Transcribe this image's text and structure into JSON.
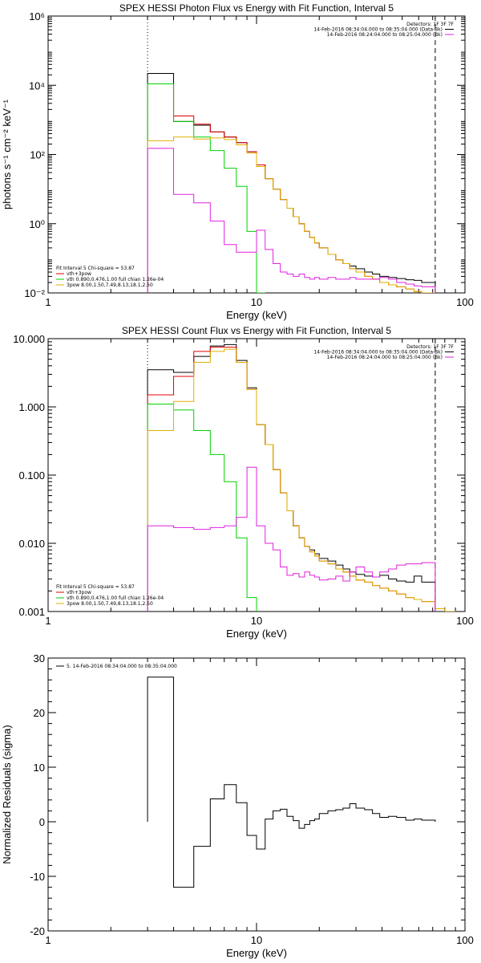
{
  "chart_data": [
    {
      "type": "line",
      "title": "SPEX HESSI Photon Flux vs Energy with Fit Function, Interval 5",
      "xlabel": "Energy (keV)",
      "ylabel": "photons s⁻¹ cm⁻² keV⁻¹",
      "xscale": "log",
      "yscale": "log",
      "xlim": [
        1,
        100
      ],
      "ylim": [
        0.01,
        1000000
      ],
      "xticks": [
        {
          "v": 1,
          "label": "1"
        },
        {
          "v": 10,
          "label": "10"
        },
        {
          "v": 100,
          "label": "100"
        }
      ],
      "yticks": [
        {
          "v": 0.01,
          "label": "10⁻²"
        },
        {
          "v": 1,
          "label": "10⁰"
        },
        {
          "v": 100,
          "label": "10²"
        },
        {
          "v": 10000,
          "label": "10⁴"
        },
        {
          "v": 1000000,
          "label": "10⁶"
        }
      ],
      "vlines": [
        {
          "x": 3,
          "style": "dotted"
        },
        {
          "x": 72,
          "style": "dashed"
        }
      ],
      "legend_top": {
        "position": "top-right",
        "items": [
          {
            "text": "Detectors: 1F 3F 7F",
            "color": ""
          },
          {
            "text": "14-Feb-2016 08:34:04.000 to 08:35:04.000 (Data-Bk)",
            "color": "#000000"
          },
          {
            "text": "14-Feb-2016 08:24:04.000 to 08:25:04.000 (Bk)",
            "color": "#e020e0"
          }
        ]
      },
      "legend_bottom": {
        "position": "bottom-left",
        "header": "Fit Interval 5   Chi-square = 53.87",
        "items": [
          {
            "text": "vth+3pow",
            "color": "#e00000"
          },
          {
            "text": "vth 0.890,0.476,1.00  full chian 1.26e-04",
            "color": "#00d000"
          },
          {
            "text": "3pow 8.00,1.50,7.49,8.13,18.1,2.50",
            "color": "#e0b000"
          }
        ]
      },
      "edges": [
        3,
        4,
        5,
        6,
        7,
        8,
        9,
        10,
        11,
        12,
        13,
        14,
        15,
        16,
        17,
        18,
        19,
        20,
        22,
        24,
        26,
        28,
        30,
        33,
        36,
        39,
        43,
        47,
        52,
        57,
        62,
        72
      ],
      "series": [
        {
          "name": "Data-Bk",
          "color": "#000000",
          "values": [
            22000,
            900,
            700,
            450,
            320,
            220,
            120,
            50,
            20,
            10,
            5,
            2.8,
            1.6,
            1,
            0.6,
            0.4,
            0.28,
            0.2,
            0.13,
            0.09,
            0.07,
            0.06,
            0.05,
            0.04,
            0.035,
            0.03,
            0.028,
            0.026,
            0.024,
            0.023,
            0.02
          ]
        },
        {
          "name": "vth+3pow",
          "color": "#e00000",
          "values": [
            11000,
            1300,
            750,
            450,
            320,
            220,
            120,
            50,
            20,
            10,
            5,
            2.8,
            1.6,
            1,
            0.6,
            0.4,
            0.28,
            0.2,
            0.13,
            0.09,
            0.07,
            0.05,
            0.04,
            0.03,
            0.025,
            0.02,
            0.017,
            0.015,
            0.013,
            0.011,
            0.01
          ]
        },
        {
          "name": "vth",
          "color": "#00d000",
          "values": [
            11000,
            900,
            320,
            130,
            40,
            12,
            0.6,
            0.01
          ]
        },
        {
          "name": "3pow",
          "color": "#e0b000",
          "values": [
            250,
            320,
            280,
            300,
            270,
            190,
            110,
            45,
            20,
            10,
            5,
            2.8,
            1.6,
            1,
            0.6,
            0.4,
            0.28,
            0.2,
            0.13,
            0.09,
            0.07,
            0.05,
            0.04,
            0.03,
            0.025,
            0.02,
            0.017,
            0.015,
            0.013,
            0.011,
            0.01
          ]
        },
        {
          "name": "Bk",
          "color": "#e020e0",
          "values": [
            150,
            7,
            4,
            1.2,
            0.25,
            0.15,
            0.15,
            0.65,
            0.18,
            0.07,
            0.04,
            0.035,
            0.03,
            0.035,
            0.028,
            0.025,
            0.028,
            0.025,
            0.028,
            0.025,
            0.025,
            0.028,
            0.025,
            0.025,
            0.025,
            0.028,
            0.025,
            0.02,
            0.018,
            0.016,
            0.015
          ]
        }
      ]
    },
    {
      "type": "line",
      "title": "SPEX HESSI Count Flux vs Energy with Fit Function, Interval 5",
      "xlabel": "Energy (keV)",
      "ylabel": "",
      "xscale": "log",
      "yscale": "log",
      "xlim": [
        1,
        100
      ],
      "ylim": [
        0.001,
        10
      ],
      "xticks": [
        {
          "v": 1,
          "label": "1"
        },
        {
          "v": 10,
          "label": "10"
        },
        {
          "v": 100,
          "label": "100"
        }
      ],
      "yticks": [
        {
          "v": 0.001,
          "label": "0.001"
        },
        {
          "v": 0.01,
          "label": "0.010"
        },
        {
          "v": 0.1,
          "label": "0.100"
        },
        {
          "v": 1,
          "label": "1.000"
        },
        {
          "v": 10,
          "label": "10.000"
        }
      ],
      "vlines": [
        {
          "x": 3,
          "style": "dotted"
        },
        {
          "x": 72,
          "style": "dashed"
        }
      ],
      "legend_top": {
        "position": "top-right",
        "items": [
          {
            "text": "Detectors: 1F 3F 7F",
            "color": ""
          },
          {
            "text": "14-Feb-2016 08:34:04.000 to 08:35:04.000 (Data-Bk)",
            "color": "#000000"
          },
          {
            "text": "14-Feb-2016 08:24:04.000 to 08:25:04.000 (Bk)",
            "color": "#e020e0"
          }
        ]
      },
      "legend_bottom": {
        "position": "bottom-left",
        "header": "Fit Interval 5   Chi-square = 53.87",
        "items": [
          {
            "text": "vth+3pow",
            "color": "#e00000"
          },
          {
            "text": "vth 0.890,0.476,1.00  full chian 1.26e-04",
            "color": "#00d000"
          },
          {
            "text": "3pow 8.00,1.50,7.49,8.13,18.1,2.50",
            "color": "#e0b000"
          }
        ]
      },
      "edges": [
        3,
        4,
        5,
        6,
        7,
        8,
        9,
        10,
        11,
        12,
        13,
        14,
        15,
        16,
        17,
        18,
        19,
        20,
        22,
        24,
        26,
        28,
        30,
        33,
        36,
        39,
        43,
        47,
        52,
        57,
        62,
        72,
        80,
        90
      ],
      "series": [
        {
          "name": "Data-Bk",
          "color": "#000000",
          "values": [
            3.5,
            3.2,
            5.5,
            7.8,
            8.2,
            4.8,
            1.9,
            0.55,
            0.28,
            0.12,
            0.055,
            0.03,
            0.018,
            0.012,
            0.009,
            0.008,
            0.007,
            0.006,
            0.0055,
            0.0048,
            0.0042,
            0.0038,
            0.0035,
            0.0033,
            0.0032,
            0.0034,
            0.003,
            0.0028,
            0.0027,
            0.0033,
            0.0027
          ]
        },
        {
          "name": "vth+3pow",
          "color": "#e00000",
          "values": [
            1.5,
            2.8,
            6.5,
            7.5,
            7.5,
            4.5,
            1.8,
            0.55,
            0.28,
            0.12,
            0.055,
            0.03,
            0.018,
            0.012,
            0.009,
            0.0075,
            0.0065,
            0.0055,
            0.005,
            0.0042,
            0.0038,
            0.0033,
            0.0029,
            0.0027,
            0.0024,
            0.0022,
            0.002,
            0.0018,
            0.0016,
            0.0015,
            0.0014
          ]
        },
        {
          "name": "vth",
          "color": "#00d000",
          "values": [
            1.1,
            0.9,
            0.45,
            0.2,
            0.08,
            0.012,
            0.0016
          ]
        },
        {
          "name": "3pow",
          "color": "#e0b000",
          "values": [
            0.45,
            1.2,
            4.5,
            6.5,
            7.0,
            4.5,
            1.8,
            0.55,
            0.28,
            0.12,
            0.055,
            0.03,
            0.018,
            0.012,
            0.009,
            0.0075,
            0.0065,
            0.0055,
            0.005,
            0.0042,
            0.0038,
            0.0033,
            0.0029,
            0.0027,
            0.0024,
            0.0022,
            0.002,
            0.0018,
            0.0016,
            0.0015,
            0.0014,
            0.0011,
            0.0009
          ]
        },
        {
          "name": "Bk",
          "color": "#e020e0",
          "values": [
            0.018,
            0.017,
            0.016,
            0.017,
            0.018,
            0.024,
            0.13,
            0.018,
            0.01,
            0.008,
            0.0045,
            0.0034,
            0.0036,
            0.0032,
            0.0038,
            0.0034,
            0.0032,
            0.0029,
            0.003,
            0.0033,
            0.0028,
            0.0038,
            0.0045,
            0.0038,
            0.0032,
            0.0038,
            0.0042,
            0.0048,
            0.005,
            0.005,
            0.0052
          ]
        }
      ]
    },
    {
      "type": "line",
      "title": "",
      "xlabel": "Energy (keV)",
      "ylabel": "Normalized Residuals (sigma)",
      "xscale": "log",
      "yscale": "linear",
      "xlim": [
        1,
        100
      ],
      "ylim": [
        -20,
        30
      ],
      "xticks": [
        {
          "v": 1,
          "label": "1"
        },
        {
          "v": 10,
          "label": "10"
        },
        {
          "v": 100,
          "label": "100"
        }
      ],
      "yticks": [
        {
          "v": -20,
          "label": "-20"
        },
        {
          "v": -10,
          "label": "-10"
        },
        {
          "v": 0,
          "label": "0"
        },
        {
          "v": 10,
          "label": "10"
        },
        {
          "v": 20,
          "label": "20"
        },
        {
          "v": 30,
          "label": "30"
        }
      ],
      "legend_top": {
        "position": "top-left",
        "items": [
          {
            "text": "5. 14-Feb-2016 08:34:04.000 to 08:35:04.000",
            "color": "#000000"
          }
        ]
      },
      "edges": [
        3,
        4,
        5,
        6,
        7,
        8,
        9,
        10,
        11,
        12,
        13,
        14,
        15,
        16,
        17,
        18,
        19,
        20,
        22,
        24,
        26,
        28,
        30,
        33,
        36,
        39,
        43,
        47,
        52,
        57,
        62,
        72
      ],
      "series": [
        {
          "name": "5. 14-Feb-2016 08:34:04.000 to 08:35:04.000",
          "color": "#000000",
          "values": [
            26.5,
            -12.0,
            -4.5,
            4.2,
            6.8,
            3.5,
            -2.5,
            -5.0,
            0.5,
            2.0,
            2.3,
            1.0,
            0.2,
            -1.2,
            -0.5,
            0.2,
            0.5,
            1.5,
            2.0,
            2.2,
            2.5,
            3.3,
            2.5,
            2.2,
            1.5,
            0.8,
            1.0,
            0.8,
            0.3,
            0.5,
            0.3
          ]
        }
      ]
    }
  ]
}
